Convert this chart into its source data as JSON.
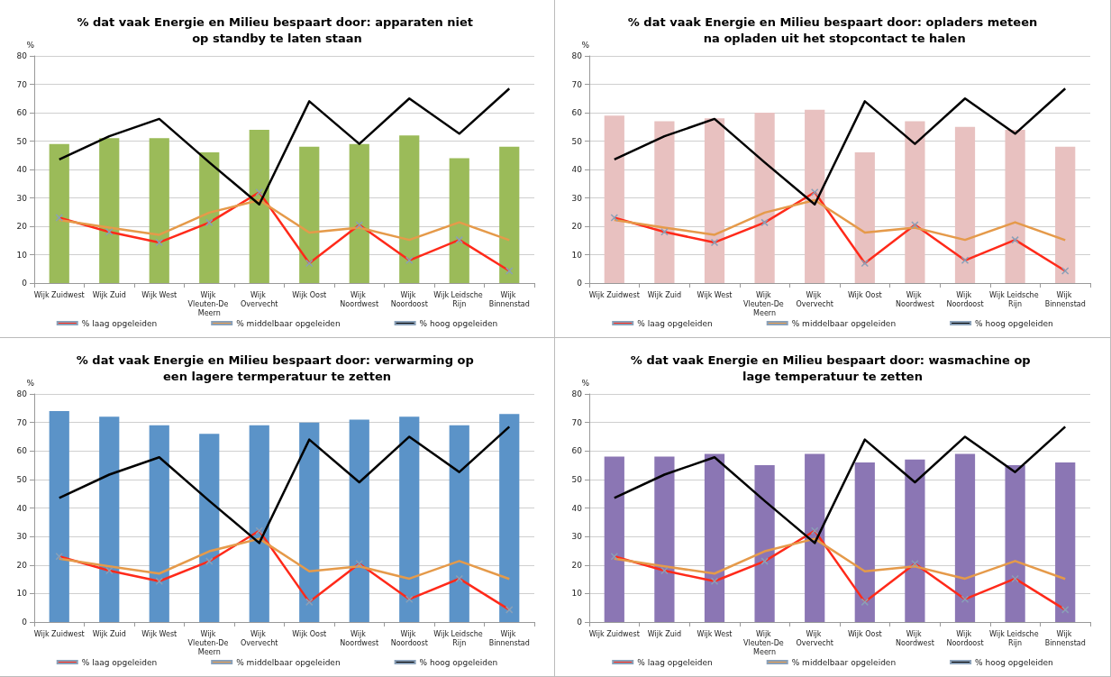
{
  "chart_data": [
    {
      "type": "bar",
      "title": "% dat vaak Energie en Milieu bespaart door: apparaten niet op standby te laten staan",
      "ylabel": "%",
      "categories": [
        "Wijk Zuidwest",
        "Wijk Zuid",
        "Wijk West",
        "Wijk Vleuten-De Meern",
        "Wijk Overvecht",
        "Wijk Oost",
        "Wijk Noordwest",
        "Wijk Noordoost",
        "Wijk Leidsche Rijn",
        "Wijk Binnenstad"
      ],
      "ylim": [
        0,
        80
      ],
      "yticks": [
        0,
        10,
        20,
        30,
        40,
        50,
        60,
        70,
        80
      ],
      "grid": "y",
      "legend": "bottom",
      "series": [
        {
          "color": "#9bbb59",
          "values": [
            49,
            51,
            51,
            46,
            54,
            48,
            49,
            52,
            44,
            48
          ]
        },
        {
          "type": "line",
          "name": "% laag opgeleiden",
          "color": "#ff2a1a",
          "marker": "cross",
          "values": [
            23,
            18,
            14.3,
            21.3,
            32,
            7,
            20.5,
            8,
            15.2,
            4.3
          ]
        },
        {
          "type": "line",
          "name": "% middelbaar opgeleiden",
          "color": "#e59a4a",
          "values": [
            22.2,
            19.5,
            17,
            24.8,
            29.2,
            17.8,
            19.5,
            15.2,
            21.4,
            15.1
          ]
        },
        {
          "type": "line",
          "name": "% hoog opgeleiden",
          "color": "#000000",
          "values": [
            43.5,
            51.7,
            57.8,
            42.5,
            27.7,
            64,
            49,
            65,
            52.6,
            68.5
          ]
        }
      ]
    },
    {
      "type": "bar",
      "title": "% dat vaak Energie en Milieu bespaart door: opladers meteen na opladen uit het stopcontact te halen",
      "ylabel": "%",
      "categories": [
        "Wijk Zuidwest",
        "Wijk Zuid",
        "Wijk West",
        "Wijk Vleuten-De Meern",
        "Wijk Overvecht",
        "Wijk Oost",
        "Wijk Noordwest",
        "Wijk Noordoost",
        "Wijk Leidsche Rijn",
        "Wijk Binnenstad"
      ],
      "ylim": [
        0,
        80
      ],
      "yticks": [
        0,
        10,
        20,
        30,
        40,
        50,
        60,
        70,
        80
      ],
      "grid": "y",
      "legend": "bottom",
      "series": [
        {
          "color": "#e8c1c0",
          "values": [
            59,
            57,
            58,
            60,
            61,
            46,
            57,
            55,
            54,
            48
          ]
        },
        {
          "type": "line",
          "name": "% laag opgeleiden",
          "color": "#ff2a1a",
          "marker": "cross",
          "values": [
            23,
            18,
            14.3,
            21.3,
            32,
            7,
            20.5,
            8,
            15.2,
            4.3
          ]
        },
        {
          "type": "line",
          "name": "% middelbaar opgeleiden",
          "color": "#e59a4a",
          "values": [
            22.2,
            19.5,
            17,
            24.8,
            29.2,
            17.8,
            19.5,
            15.2,
            21.4,
            15.1
          ]
        },
        {
          "type": "line",
          "name": "% hoog opgeleiden",
          "color": "#000000",
          "values": [
            43.5,
            51.7,
            57.8,
            42.5,
            27.7,
            64,
            49,
            65,
            52.6,
            68.5
          ]
        }
      ]
    },
    {
      "type": "bar",
      "title": "% dat vaak Energie en Milieu bespaart door: verwarming op een lagere termperatuur te zetten",
      "ylabel": "%",
      "categories": [
        "Wijk Zuidwest",
        "Wijk Zuid",
        "Wijk West",
        "Wijk Vleuten-De Meern",
        "Wijk Overvecht",
        "Wijk Oost",
        "Wijk Noordwest",
        "Wijk Noordoost",
        "Wijk Leidsche Rijn",
        "Wijk Binnenstad"
      ],
      "ylim": [
        0,
        80
      ],
      "yticks": [
        0,
        10,
        20,
        30,
        40,
        50,
        60,
        70,
        80
      ],
      "grid": "y",
      "legend": "bottom",
      "series": [
        {
          "color": "#5b93c8",
          "values": [
            74,
            72,
            69,
            66,
            69,
            70,
            71,
            72,
            69,
            73
          ]
        },
        {
          "type": "line",
          "name": "% laag opgeleiden",
          "color": "#ff2a1a",
          "marker": "cross",
          "values": [
            23,
            18,
            14.3,
            21.3,
            32,
            7,
            20.5,
            8,
            15.2,
            4.3
          ]
        },
        {
          "type": "line",
          "name": "% middelbaar opgeleiden",
          "color": "#e59a4a",
          "values": [
            22.2,
            19.5,
            17,
            24.8,
            29.2,
            17.8,
            19.5,
            15.2,
            21.4,
            15.1
          ]
        },
        {
          "type": "line",
          "name": "% hoog opgeleiden",
          "color": "#000000",
          "values": [
            43.5,
            51.7,
            57.8,
            42.5,
            27.7,
            64,
            49,
            65,
            52.6,
            68.5
          ]
        }
      ]
    },
    {
      "type": "bar",
      "title": "% dat vaak Energie en Milieu bespaart door: wasmachine op lage temperatuur te zetten",
      "ylabel": "%",
      "categories": [
        "Wijk Zuidwest",
        "Wijk Zuid",
        "Wijk West",
        "Wijk Vleuten-De Meern",
        "Wijk Overvecht",
        "Wijk Oost",
        "Wijk Noordwest",
        "Wijk Noordoost",
        "Wijk Leidsche Rijn",
        "Wijk Binnenstad"
      ],
      "ylim": [
        0,
        80
      ],
      "yticks": [
        0,
        10,
        20,
        30,
        40,
        50,
        60,
        70,
        80
      ],
      "grid": "y",
      "legend": "bottom",
      "series": [
        {
          "color": "#8b76b4",
          "values": [
            58,
            58,
            59,
            55,
            59,
            56,
            57,
            59,
            55,
            56
          ]
        },
        {
          "type": "line",
          "name": "% laag opgeleiden",
          "color": "#ff2a1a",
          "marker": "cross",
          "values": [
            23,
            18,
            14.3,
            21.3,
            32,
            7,
            20.5,
            8,
            15.2,
            4.3
          ]
        },
        {
          "type": "line",
          "name": "% middelbaar opgeleiden",
          "color": "#e59a4a",
          "values": [
            22.2,
            19.5,
            17,
            24.8,
            29.2,
            17.8,
            19.5,
            15.2,
            21.4,
            15.1
          ]
        },
        {
          "type": "line",
          "name": "% hoog opgeleiden",
          "color": "#000000",
          "values": [
            43.5,
            51.7,
            57.8,
            42.5,
            27.7,
            64,
            49,
            65,
            52.6,
            68.5
          ]
        }
      ]
    }
  ]
}
